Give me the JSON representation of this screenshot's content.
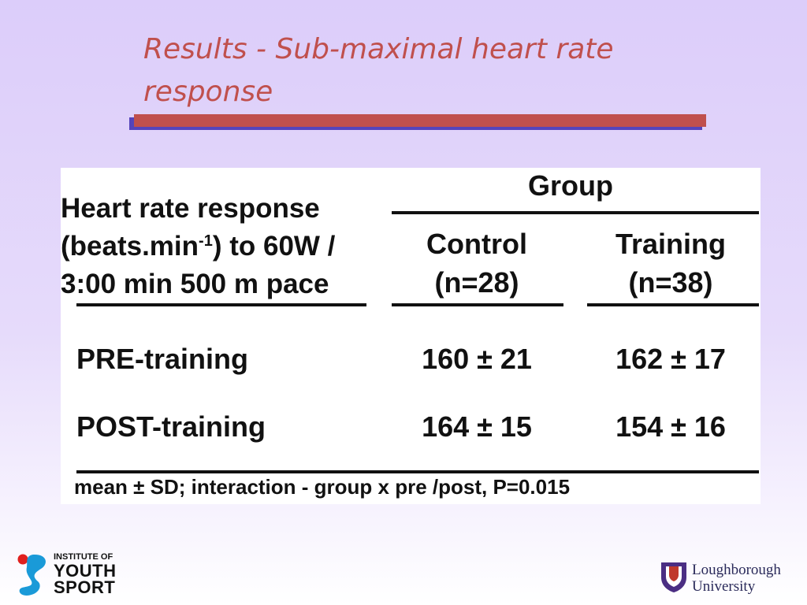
{
  "slide": {
    "title": "Results - Sub-maximal heart rate response"
  },
  "table": {
    "group_header": "Group",
    "measure_header": {
      "line1": "Heart rate response",
      "line2_pre": "(beats.min",
      "line2_sup": "-1",
      "line2_post": ") to 60W /",
      "line3": "3:00 min 500 m pace"
    },
    "columns": [
      {
        "name": "Control",
        "n": "(n=28)"
      },
      {
        "name": "Training",
        "n": "(n=38)"
      }
    ],
    "rows": [
      {
        "label": "PRE-training",
        "values": [
          "160 ± 21",
          "162 ± 17"
        ]
      },
      {
        "label": "POST-training",
        "values": [
          "164 ± 15",
          "154 ± 16"
        ]
      }
    ],
    "footnote": "mean ± SD; interaction - group x pre /post, P=0.015"
  },
  "logos": {
    "left": {
      "line1": "INSTITUTE OF",
      "line2": "YOUTH",
      "line3": "SPORT"
    },
    "right": {
      "line1": "Loughborough",
      "line2": "University"
    }
  },
  "colors": {
    "title": "#c0504d",
    "title_bar": "#c0504d",
    "title_bar_shadow": "#5544bb",
    "iys_red": "#e0201e",
    "iys_blue": "#1a9ad8",
    "lu_purple": "#4b2e83"
  }
}
